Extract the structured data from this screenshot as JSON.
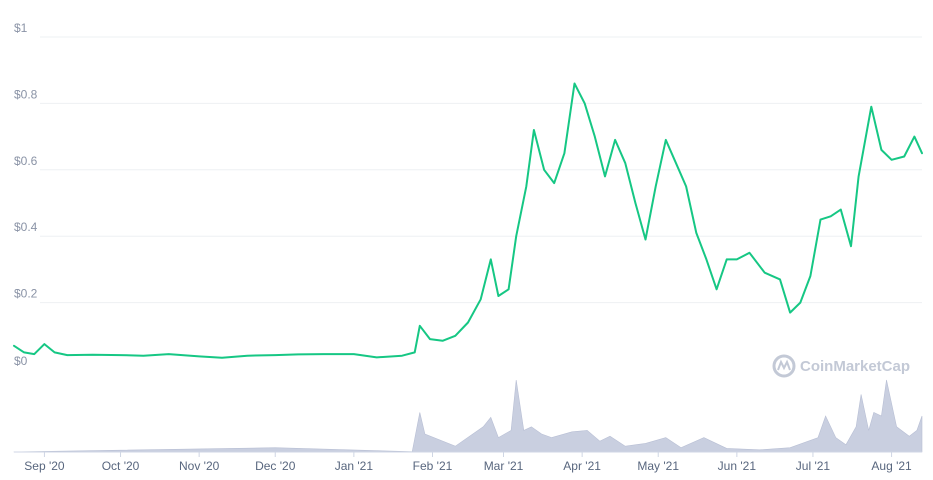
{
  "chart_data": {
    "type": "line",
    "xlabel": "",
    "ylabel": "",
    "ylim": [
      0,
      1
    ],
    "grid": true,
    "legend": "none",
    "yticks": [
      {
        "value": 0,
        "label": "$0"
      },
      {
        "value": 0.2,
        "label": "$0.2"
      },
      {
        "value": 0.4,
        "label": "$0.4"
      },
      {
        "value": 0.6,
        "label": "$0.6"
      },
      {
        "value": 0.8,
        "label": "$0.8"
      },
      {
        "value": 1,
        "label": "$1"
      }
    ],
    "xlim": [
      "2020-08-20",
      "2021-08-13"
    ],
    "xticks": [
      {
        "date": "2020-09-01",
        "label": "Sep '20"
      },
      {
        "date": "2020-10-01",
        "label": "Oct '20"
      },
      {
        "date": "2020-11-01",
        "label": "Nov '20"
      },
      {
        "date": "2020-12-01",
        "label": "Dec '20"
      },
      {
        "date": "2021-01-01",
        "label": "Jan '21"
      },
      {
        "date": "2021-02-01",
        "label": "Feb '21"
      },
      {
        "date": "2021-03-01",
        "label": "Mar '21"
      },
      {
        "date": "2021-04-01",
        "label": "Apr '21"
      },
      {
        "date": "2021-05-01",
        "label": "May '21"
      },
      {
        "date": "2021-06-01",
        "label": "Jun '21"
      },
      {
        "date": "2021-07-01",
        "label": "Jul '21"
      },
      {
        "date": "2021-08-01",
        "label": "Aug '21"
      }
    ],
    "price_color": "#16c784",
    "volume_color": "#c9cfe0",
    "price_series": [
      [
        "2020-08-20",
        0.07
      ],
      [
        "2020-08-24",
        0.05
      ],
      [
        "2020-08-28",
        0.045
      ],
      [
        "2020-09-01",
        0.075
      ],
      [
        "2020-09-05",
        0.05
      ],
      [
        "2020-09-10",
        0.042
      ],
      [
        "2020-09-20",
        0.043
      ],
      [
        "2020-10-01",
        0.042
      ],
      [
        "2020-10-10",
        0.04
      ],
      [
        "2020-10-20",
        0.045
      ],
      [
        "2020-11-01",
        0.038
      ],
      [
        "2020-11-10",
        0.034
      ],
      [
        "2020-11-20",
        0.04
      ],
      [
        "2020-12-01",
        0.042
      ],
      [
        "2020-12-10",
        0.044
      ],
      [
        "2020-12-20",
        0.045
      ],
      [
        "2021-01-01",
        0.045
      ],
      [
        "2021-01-10",
        0.035
      ],
      [
        "2021-01-20",
        0.04
      ],
      [
        "2021-01-25",
        0.05
      ],
      [
        "2021-01-27",
        0.13
      ],
      [
        "2021-01-31",
        0.09
      ],
      [
        "2021-02-05",
        0.085
      ],
      [
        "2021-02-10",
        0.1
      ],
      [
        "2021-02-15",
        0.14
      ],
      [
        "2021-02-20",
        0.21
      ],
      [
        "2021-02-24",
        0.33
      ],
      [
        "2021-02-27",
        0.22
      ],
      [
        "2021-03-03",
        0.24
      ],
      [
        "2021-03-06",
        0.4
      ],
      [
        "2021-03-10",
        0.55
      ],
      [
        "2021-03-13",
        0.72
      ],
      [
        "2021-03-17",
        0.6
      ],
      [
        "2021-03-21",
        0.56
      ],
      [
        "2021-03-25",
        0.65
      ],
      [
        "2021-03-29",
        0.86
      ],
      [
        "2021-04-02",
        0.8
      ],
      [
        "2021-04-06",
        0.7
      ],
      [
        "2021-04-10",
        0.58
      ],
      [
        "2021-04-14",
        0.69
      ],
      [
        "2021-04-18",
        0.62
      ],
      [
        "2021-04-22",
        0.5
      ],
      [
        "2021-04-26",
        0.39
      ],
      [
        "2021-04-30",
        0.55
      ],
      [
        "2021-05-04",
        0.69
      ],
      [
        "2021-05-08",
        0.62
      ],
      [
        "2021-05-12",
        0.55
      ],
      [
        "2021-05-16",
        0.41
      ],
      [
        "2021-05-20",
        0.33
      ],
      [
        "2021-05-24",
        0.24
      ],
      [
        "2021-05-28",
        0.33
      ],
      [
        "2021-06-01",
        0.33
      ],
      [
        "2021-06-06",
        0.35
      ],
      [
        "2021-06-12",
        0.29
      ],
      [
        "2021-06-18",
        0.27
      ],
      [
        "2021-06-22",
        0.17
      ],
      [
        "2021-06-26",
        0.2
      ],
      [
        "2021-06-30",
        0.28
      ],
      [
        "2021-07-04",
        0.45
      ],
      [
        "2021-07-08",
        0.46
      ],
      [
        "2021-07-12",
        0.48
      ],
      [
        "2021-07-16",
        0.37
      ],
      [
        "2021-07-19",
        0.58
      ],
      [
        "2021-07-24",
        0.79
      ],
      [
        "2021-07-28",
        0.66
      ],
      [
        "2021-08-01",
        0.63
      ],
      [
        "2021-08-06",
        0.64
      ],
      [
        "2021-08-10",
        0.7
      ],
      [
        "2021-08-13",
        0.65
      ]
    ],
    "volume_series": [
      [
        "2020-08-20",
        0.002
      ],
      [
        "2020-12-01",
        0.06
      ],
      [
        "2021-01-24",
        0.004
      ],
      [
        "2021-01-27",
        0.55
      ],
      [
        "2021-01-29",
        0.25
      ],
      [
        "2021-02-10",
        0.08
      ],
      [
        "2021-02-21",
        0.35
      ],
      [
        "2021-02-24",
        0.48
      ],
      [
        "2021-02-27",
        0.2
      ],
      [
        "2021-03-04",
        0.3
      ],
      [
        "2021-03-06",
        1.0
      ],
      [
        "2021-03-09",
        0.3
      ],
      [
        "2021-03-12",
        0.35
      ],
      [
        "2021-03-16",
        0.25
      ],
      [
        "2021-03-20",
        0.2
      ],
      [
        "2021-03-28",
        0.28
      ],
      [
        "2021-04-03",
        0.3
      ],
      [
        "2021-04-08",
        0.15
      ],
      [
        "2021-04-12",
        0.22
      ],
      [
        "2021-04-18",
        0.08
      ],
      [
        "2021-04-26",
        0.12
      ],
      [
        "2021-05-04",
        0.2
      ],
      [
        "2021-05-10",
        0.06
      ],
      [
        "2021-05-19",
        0.2
      ],
      [
        "2021-05-28",
        0.05
      ],
      [
        "2021-06-10",
        0.03
      ],
      [
        "2021-06-22",
        0.06
      ],
      [
        "2021-07-03",
        0.2
      ],
      [
        "2021-07-06",
        0.5
      ],
      [
        "2021-07-10",
        0.2
      ],
      [
        "2021-07-14",
        0.1
      ],
      [
        "2021-07-18",
        0.35
      ],
      [
        "2021-07-20",
        0.8
      ],
      [
        "2021-07-23",
        0.3
      ],
      [
        "2021-07-25",
        0.55
      ],
      [
        "2021-07-28",
        0.5
      ],
      [
        "2021-07-30",
        1.0
      ],
      [
        "2021-08-03",
        0.35
      ],
      [
        "2021-08-08",
        0.22
      ],
      [
        "2021-08-11",
        0.3
      ],
      [
        "2021-08-13",
        0.5
      ]
    ]
  },
  "watermark": {
    "brand": "CoinMarketCap",
    "icon": "coinmarketcap-logo-icon"
  }
}
